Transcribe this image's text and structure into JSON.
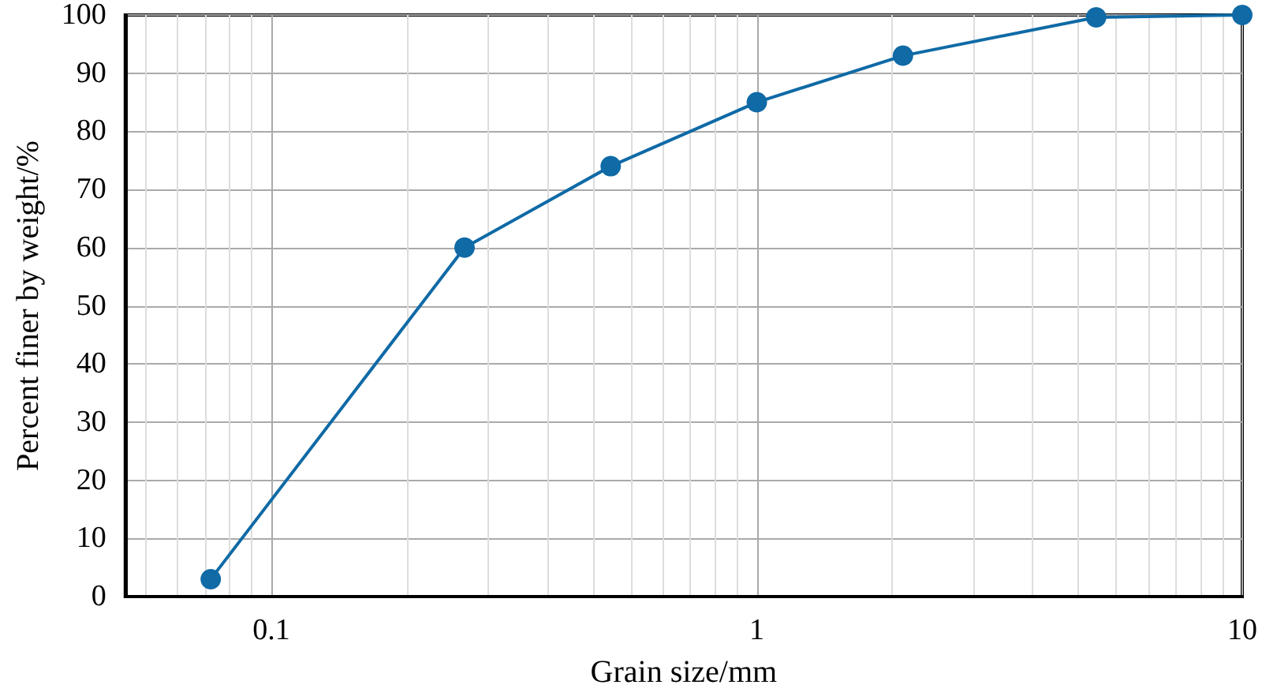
{
  "chart_data": {
    "type": "line",
    "xlabel": "Grain size/mm",
    "ylabel": "Percent finer by weight/%",
    "x": [
      0.075,
      0.25,
      0.5,
      1,
      2,
      5,
      10
    ],
    "series": [
      {
        "color": "#0f6aa6",
        "values": [
          3,
          60,
          74,
          85,
          93,
          99.6,
          100
        ]
      }
    ],
    "log": "x",
    "xlim": [
      0.05,
      10
    ],
    "xticks": [
      0.1,
      1,
      10
    ],
    "ylim": [
      0,
      100
    ],
    "yticks": [
      0,
      10,
      20,
      30,
      40,
      50,
      60,
      70,
      80,
      90,
      100
    ],
    "grid": true,
    "marker": "circle",
    "line_style": "solid"
  }
}
